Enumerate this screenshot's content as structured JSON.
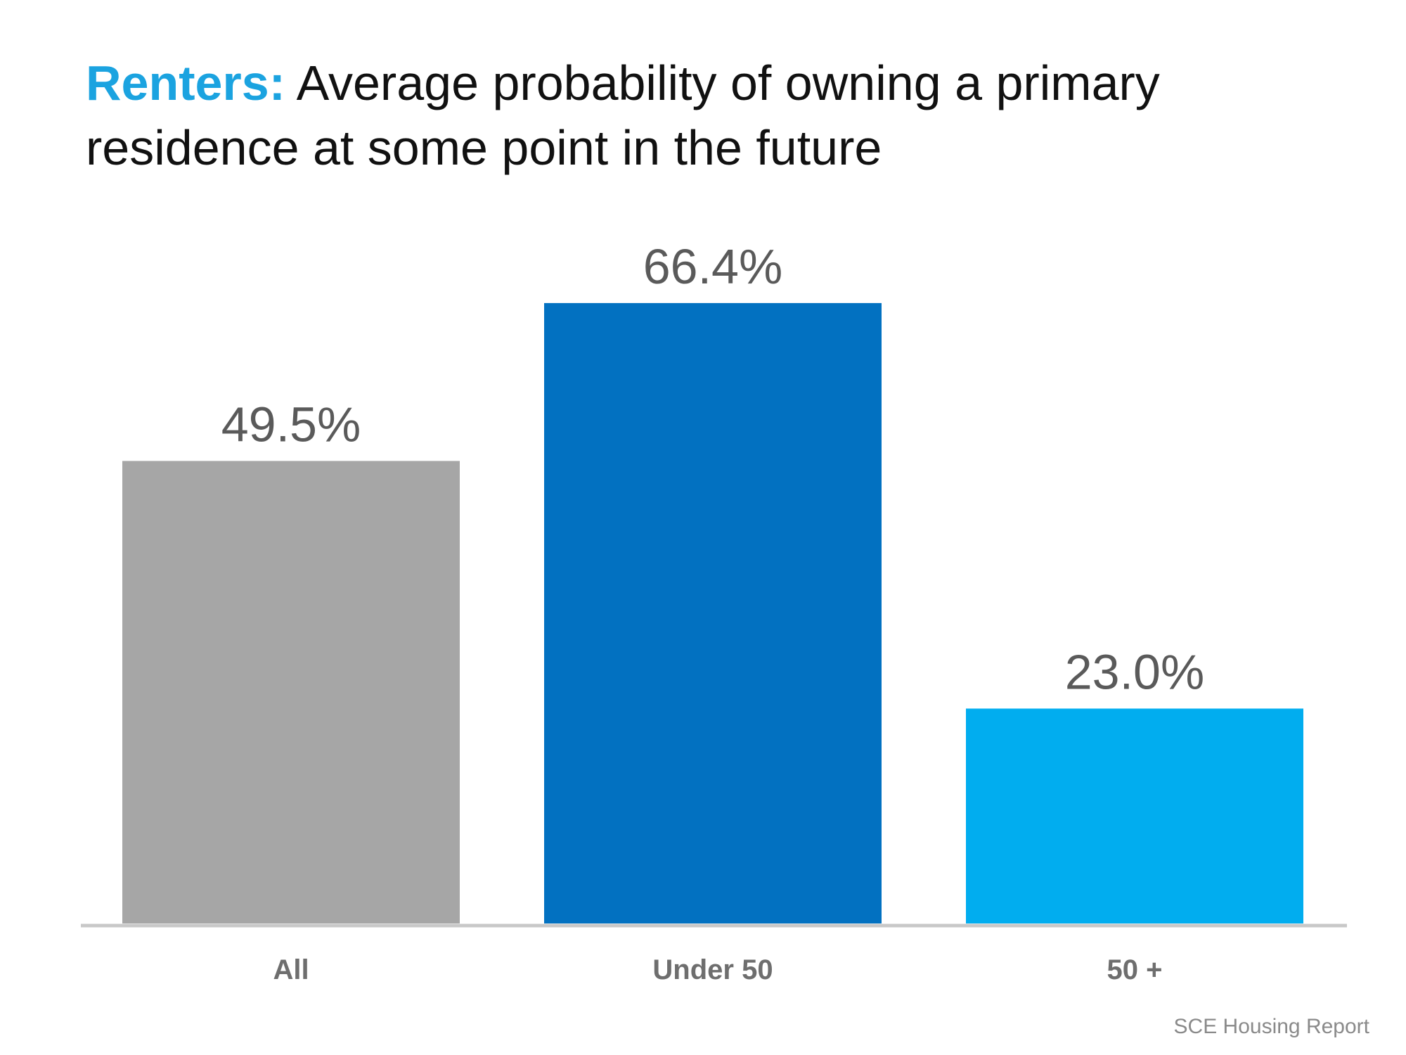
{
  "title": {
    "lead": "Renters:",
    "text": "Average probability of owning a primary residence at some point in the future"
  },
  "source": "SCE Housing Report",
  "colors": {
    "lead": "#1ba3e0",
    "axis": "#c8c8c8",
    "value_label": "#5a5a5a",
    "category_label": "#6e6e6e"
  },
  "chart_data": {
    "type": "bar",
    "categories": [
      "All",
      "Under 50",
      "50 +"
    ],
    "values": [
      49.5,
      66.4,
      23.0
    ],
    "value_labels": [
      "49.5%",
      "66.4%",
      "23.0%"
    ],
    "bar_colors": [
      "#a6a6a6",
      "#0271c1",
      "#01adef"
    ],
    "ylim": [
      0,
      70
    ],
    "grid": false,
    "legend": "none"
  }
}
